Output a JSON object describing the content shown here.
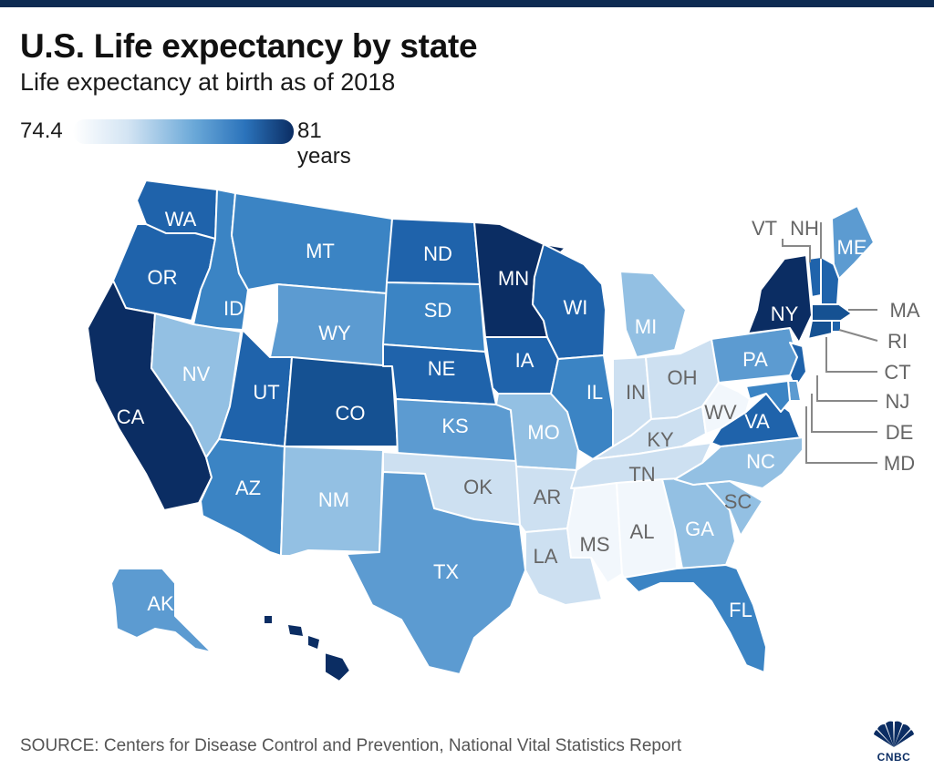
{
  "header": {
    "title": "U.S. Life expectancy by state",
    "subtitle": "Life expectancy at birth as of 2018"
  },
  "legend": {
    "min_label": "74.4",
    "max_label": "81 years",
    "min_value": 74.4,
    "max_value": 81
  },
  "colors": {
    "level1": "#f2f7fc",
    "level2": "#cde0f1",
    "level3": "#93c0e3",
    "level4": "#5c9bd1",
    "level5": "#3b84c4",
    "level6": "#1f63ab",
    "level7": "#155192",
    "level8": "#0b2d63",
    "frame": "#0d2b52"
  },
  "states": [
    {
      "abbr": "WA",
      "level": 6
    },
    {
      "abbr": "OR",
      "level": 6
    },
    {
      "abbr": "CA",
      "level": 8
    },
    {
      "abbr": "ID",
      "level": 5
    },
    {
      "abbr": "NV",
      "level": 3
    },
    {
      "abbr": "MT",
      "level": 5
    },
    {
      "abbr": "WY",
      "level": 4
    },
    {
      "abbr": "UT",
      "level": 6
    },
    {
      "abbr": "AZ",
      "level": 5
    },
    {
      "abbr": "CO",
      "level": 7
    },
    {
      "abbr": "NM",
      "level": 3
    },
    {
      "abbr": "ND",
      "level": 6
    },
    {
      "abbr": "SD",
      "level": 5
    },
    {
      "abbr": "NE",
      "level": 6
    },
    {
      "abbr": "KS",
      "level": 4
    },
    {
      "abbr": "OK",
      "level": 2
    },
    {
      "abbr": "TX",
      "level": 4
    },
    {
      "abbr": "MN",
      "level": 8
    },
    {
      "abbr": "IA",
      "level": 6
    },
    {
      "abbr": "MO",
      "level": 3
    },
    {
      "abbr": "AR",
      "level": 2
    },
    {
      "abbr": "LA",
      "level": 2
    },
    {
      "abbr": "WI",
      "level": 6
    },
    {
      "abbr": "IL",
      "level": 5
    },
    {
      "abbr": "MI",
      "level": 3
    },
    {
      "abbr": "IN",
      "level": 2
    },
    {
      "abbr": "OH",
      "level": 2
    },
    {
      "abbr": "KY",
      "level": 2
    },
    {
      "abbr": "TN",
      "level": 2
    },
    {
      "abbr": "MS",
      "level": 1
    },
    {
      "abbr": "AL",
      "level": 1
    },
    {
      "abbr": "GA",
      "level": 3
    },
    {
      "abbr": "FL",
      "level": 5
    },
    {
      "abbr": "SC",
      "level": 3
    },
    {
      "abbr": "NC",
      "level": 3
    },
    {
      "abbr": "VA",
      "level": 6
    },
    {
      "abbr": "WV",
      "level": 1
    },
    {
      "abbr": "PA",
      "level": 4
    },
    {
      "abbr": "NY",
      "level": 8
    },
    {
      "abbr": "ME",
      "level": 4
    },
    {
      "abbr": "VT",
      "level": 6
    },
    {
      "abbr": "NH",
      "level": 6
    },
    {
      "abbr": "MA",
      "level": 7
    },
    {
      "abbr": "RI",
      "level": 6
    },
    {
      "abbr": "CT",
      "level": 7
    },
    {
      "abbr": "NJ",
      "level": 6
    },
    {
      "abbr": "DE",
      "level": 4
    },
    {
      "abbr": "MD",
      "level": 5
    },
    {
      "abbr": "AK",
      "level": 4
    },
    {
      "abbr": "HI",
      "level": 8
    }
  ],
  "callouts": [
    "VT",
    "NH",
    "MA",
    "RI",
    "CT",
    "NJ",
    "DE",
    "MD"
  ],
  "source": "SOURCE: Centers for Disease Control and Prevention, National Vital Statistics Report",
  "logo": {
    "text": "CNBC"
  }
}
